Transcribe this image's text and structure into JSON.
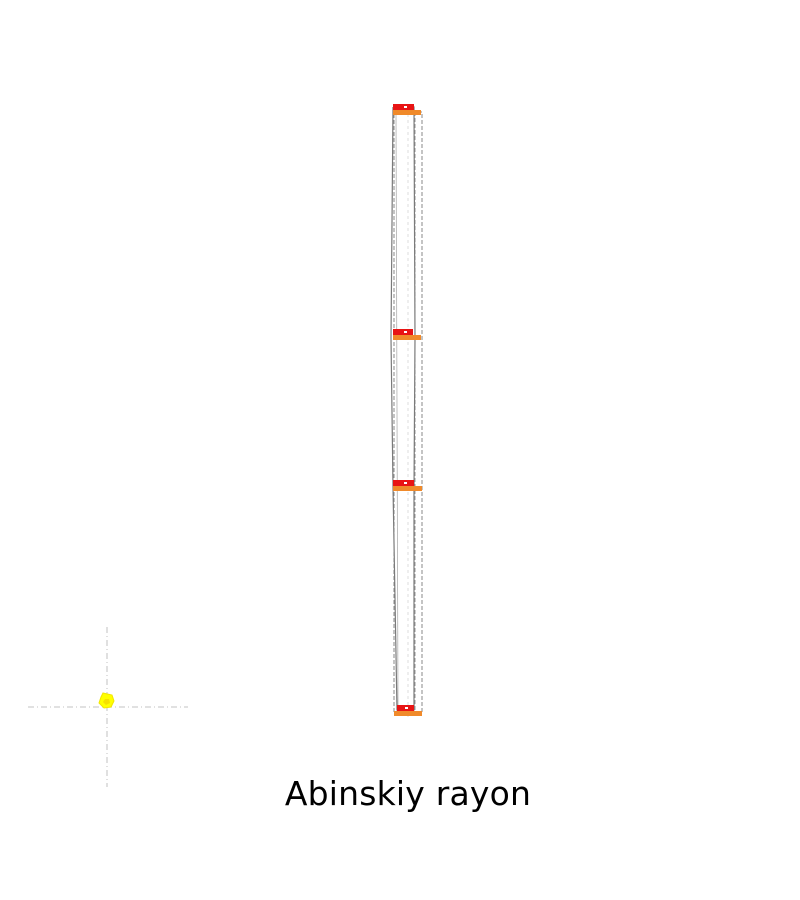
{
  "map": {
    "title": "Abinskiy rayon",
    "colors": {
      "background": "#ffffff",
      "strip_outline": "#7f7f7f",
      "strip_dashed": "#8a8a8a",
      "crosshair": "#cfcfcf",
      "marker_red": "#e81414",
      "marker_orange": "#f08a2a",
      "locator_point": "#ffff00"
    },
    "icons": {
      "locator_point": "locator-point-icon",
      "section_marker": "section-marker-icon"
    }
  }
}
